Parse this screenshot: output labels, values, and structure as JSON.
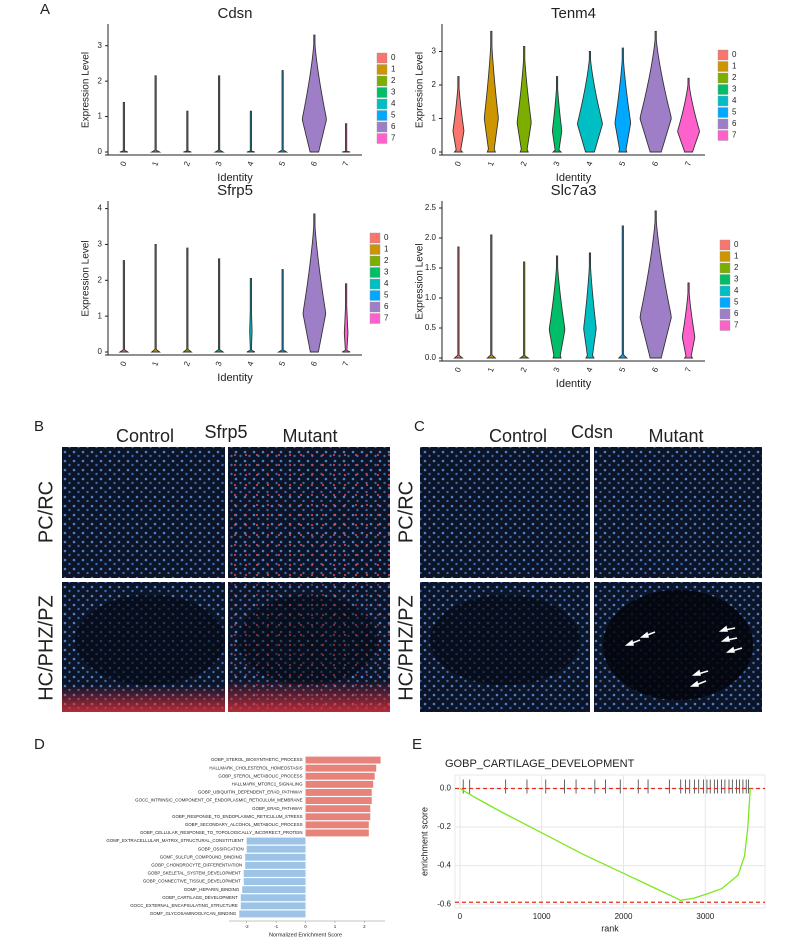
{
  "panel_a": {
    "letter": "A"
  },
  "panel_b": {
    "letter": "B",
    "gene": "Sfrp5",
    "columns": [
      "Control",
      "Mutant"
    ],
    "rows": [
      "PC/RC",
      "HC/PHZ/PZ"
    ]
  },
  "panel_c": {
    "letter": "C",
    "gene": "Cdsn",
    "columns": [
      "Control",
      "Mutant"
    ],
    "rows": [
      "PC/RC",
      "HC/PHZ/PZ"
    ]
  },
  "panel_d": {
    "letter": "D"
  },
  "panel_e": {
    "letter": "E"
  },
  "chart_data": [
    {
      "type": "violin",
      "title": "Cdsn",
      "ylabel": "Expression Level",
      "xlabel": "Identity",
      "categories": [
        "0",
        "1",
        "2",
        "3",
        "4",
        "5",
        "6",
        "7"
      ],
      "values": [
        1.4,
        2.15,
        1.15,
        2.15,
        1.15,
        2.3,
        3.3,
        0.8
      ],
      "widths": [
        0.03,
        0.03,
        0.03,
        0.03,
        0.03,
        0.03,
        0.8,
        0.03
      ],
      "colors": [
        "#F8766D",
        "#CD9600",
        "#7CAE00",
        "#00BE67",
        "#00BFC4",
        "#00A9FF",
        "#9E7FC7",
        "#FF61CC"
      ],
      "ylim": [
        0,
        3.5
      ],
      "yticks": [
        0,
        1,
        2,
        3
      ]
    },
    {
      "type": "violin",
      "title": "Tenm4",
      "ylabel": "Expression Level",
      "xlabel": "Identity",
      "categories": [
        "0",
        "1",
        "2",
        "3",
        "4",
        "5",
        "6",
        "7"
      ],
      "values": [
        2.25,
        3.6,
        3.15,
        2.25,
        3.0,
        3.1,
        3.6,
        2.2
      ],
      "widths": [
        0.35,
        0.45,
        0.45,
        0.3,
        0.8,
        0.5,
        1.0,
        0.7
      ],
      "colors": [
        "#F8766D",
        "#CD9600",
        "#7CAE00",
        "#00BE67",
        "#00BFC4",
        "#00A9FF",
        "#9E7FC7",
        "#FF61CC"
      ],
      "ylim": [
        0,
        3.7
      ],
      "yticks": [
        0,
        1,
        2,
        3
      ]
    },
    {
      "type": "violin",
      "title": "Sfrp5",
      "ylabel": "Expression Level",
      "xlabel": "Identity",
      "categories": [
        "0",
        "1",
        "2",
        "3",
        "4",
        "5",
        "6",
        "7"
      ],
      "values": [
        2.55,
        3.0,
        2.9,
        2.6,
        2.05,
        2.3,
        3.85,
        1.9
      ],
      "widths": [
        0.03,
        0.03,
        0.03,
        0.03,
        0.08,
        0.03,
        0.75,
        0.12
      ],
      "colors": [
        "#F8766D",
        "#CD9600",
        "#7CAE00",
        "#00BE67",
        "#00BFC4",
        "#00A9FF",
        "#9E7FC7",
        "#FF61CC"
      ],
      "ylim": [
        0,
        4.1
      ],
      "yticks": [
        0,
        1,
        2,
        3,
        4
      ]
    },
    {
      "type": "violin",
      "title": "Slc7a3",
      "ylabel": "Expression Level",
      "xlabel": "Identity",
      "categories": [
        "0",
        "1",
        "2",
        "3",
        "4",
        "5",
        "6",
        "7"
      ],
      "values": [
        1.85,
        2.05,
        1.6,
        1.7,
        1.75,
        2.2,
        2.45,
        1.25
      ],
      "widths": [
        0.03,
        0.03,
        0.03,
        0.5,
        0.4,
        0.03,
        1.0,
        0.4
      ],
      "colors": [
        "#F8766D",
        "#CD9600",
        "#7CAE00",
        "#00BE67",
        "#00BFC4",
        "#00A9FF",
        "#9E7FC7",
        "#FF61CC"
      ],
      "ylim": [
        0,
        2.55
      ],
      "yticks": [
        {
          "value": 0,
          "label": "0.0"
        },
        {
          "value": 0.5,
          "label": "0.5"
        },
        {
          "value": 1,
          "label": "1.0"
        },
        {
          "value": 1.5,
          "label": "1.5"
        },
        {
          "value": 2,
          "label": "2.0"
        },
        {
          "value": 2.5,
          "label": "2.5"
        }
      ]
    },
    {
      "type": "barh",
      "xlabel": "Normalized Enrichment Score",
      "categories": [
        "GOBP_STEROL_BIOSYNTHETIC_PROCESS",
        "HALLMARK_CHOLESTEROL_HOMEOSTASIS",
        "GOBP_STEROL_METABOLIC_PROCESS",
        "HALLMARK_MTORC1_SIGNALING",
        "GOBP_UBIQUITIN_DEPENDENT_ERAD_PATHWAY",
        "GOCC_INTRINSIC_COMPONENT_OF_ENDOPLASMIC_RETICULUM_MEMBRANE",
        "GOBP_ERAD_PATHWAY",
        "GOBP_RESPONSE_TO_ENDOPLASMIC_RETICULUM_STRESS",
        "GOBP_SECONDARY_ALCOHOL_METABOLIC_PROCESS",
        "GOBP_CELLULAR_RESPONSE_TO_TOPOLOGICALLY_INCORRECT_PROTEIN",
        "GOMF_EXTRACELLULAR_MATRIX_STRUCTURAL_CONSTITUENT",
        "GOBP_OSSIFICATION",
        "GOMF_SULFUR_COMPOUND_BINDING",
        "GOBP_CHONDROCYTE_DIFFERENTIATION",
        "GOBP_SKELETAL_SYSTEM_DEVELOPMENT",
        "GOBP_CONNECTIVE_TISSUE_DEVELOPMENT",
        "GOMF_HEPARIN_BINDING",
        "GOBP_CARTILAGE_DEVELOPMENT",
        "GOCC_EXTERNAL_ENCAPSULATING_STRUCTURE",
        "GOMF_GLYCOSAMINOGLYCAN_BINDING"
      ],
      "values": [
        2.55,
        2.4,
        2.35,
        2.3,
        2.25,
        2.25,
        2.2,
        2.2,
        2.15,
        2.15,
        -2.0,
        -2.0,
        -2.05,
        -2.05,
        -2.1,
        -2.1,
        -2.15,
        -2.2,
        -2.2,
        -2.25
      ],
      "positive_color": "#E8837B",
      "negative_color": "#9DC3E6",
      "xlim": [
        -2.6,
        2.7
      ],
      "xticks": [
        -2,
        -1,
        0,
        1,
        2
      ]
    },
    {
      "type": "line",
      "title": "GOBP_CARTILAGE_DEVELOPMENT",
      "xlabel": "rank",
      "ylabel": "enrichment score",
      "x": [
        0,
        200,
        500,
        1000,
        1500,
        2000,
        2400,
        2700,
        2850,
        3000,
        3200,
        3400,
        3480,
        3520,
        3550
      ],
      "values": [
        0,
        -0.05,
        -0.12,
        -0.23,
        -0.34,
        -0.44,
        -0.52,
        -0.58,
        -0.57,
        -0.55,
        -0.52,
        -0.45,
        -0.35,
        -0.2,
        0
      ],
      "color": "#7CE81E",
      "hits": [
        40,
        120,
        560,
        820,
        1050,
        1280,
        1420,
        1650,
        1780,
        1960,
        2180,
        2300,
        2560,
        2700,
        2760,
        2810,
        2870,
        2920,
        2980,
        3020,
        3060,
        3110,
        3150,
        3200,
        3240,
        3290,
        3330,
        3380,
        3420,
        3460,
        3500,
        3530
      ],
      "reference_lines": [
        0,
        -0.59
      ],
      "reference_color": "#E0301E",
      "xlim": [
        -60,
        3730
      ],
      "xticks": [
        0,
        1000,
        2000,
        3000
      ],
      "ylim": [
        -0.62,
        0.07
      ],
      "yticks": [
        {
          "value": 0,
          "label": "0.0"
        },
        -0.2,
        -0.4,
        -0.6
      ],
      "grid": true
    }
  ]
}
